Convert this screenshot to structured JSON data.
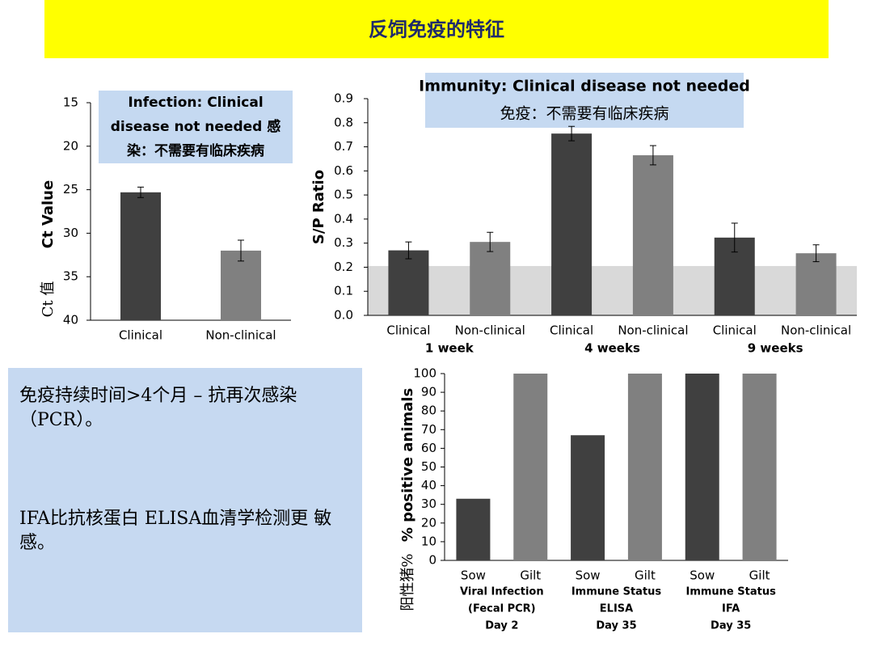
{
  "title": "反饲免疫的特征",
  "text_box": {
    "paragraphs": [
      "免疫持续时间>4个月 – 抗再次感染（PCR）。",
      "IFA比抗核蛋白 ELISA血清学检测更 敏感。"
    ]
  },
  "chart_data": [
    {
      "type": "bar",
      "ylabel": "Ct Value",
      "ylabel_cn": "Ct 值",
      "annotation": [
        "Infection: Clinical",
        "disease not needed 感",
        "染：不需要有临床疾病"
      ],
      "categories": [
        "Clinical",
        "Non-clinical"
      ],
      "values": [
        25.3,
        32
      ],
      "errors": [
        0.6,
        1.2
      ],
      "colors": [
        "#404040",
        "#808080"
      ],
      "ylim": [
        15,
        40
      ],
      "y_inverted": true,
      "yticks": [
        15,
        20,
        25,
        30,
        35,
        40
      ]
    },
    {
      "type": "bar",
      "ylabel": "S/P Ratio",
      "annotation": [
        "Immunity: Clinical disease not needed",
        "免疫：不需要有临床疾病"
      ],
      "categories": [
        "Clinical",
        "Non-clinical",
        "Clinical",
        "Non-clinical",
        "Clinical",
        "Non-clinical"
      ],
      "groups": [
        [
          "1 week"
        ],
        [
          "4 weeks"
        ],
        [
          "9 weeks"
        ]
      ],
      "values": [
        0.27,
        0.305,
        0.755,
        0.665,
        0.323,
        0.258
      ],
      "errors": [
        0.035,
        0.04,
        0.03,
        0.04,
        0.06,
        0.035
      ],
      "colors": [
        "#404040",
        "#808080",
        "#404040",
        "#808080",
        "#404040",
        "#808080"
      ],
      "threshold": 0.205,
      "threshold_color": "#d9d9d9",
      "ylim": [
        0,
        0.9
      ],
      "yticks": [
        {
          "value": 0,
          "label": "0.0"
        },
        0.1,
        0.2,
        0.3,
        0.4,
        0.5,
        0.6,
        0.7,
        0.8,
        0.9
      ]
    },
    {
      "type": "bar",
      "ylabel": "% positive animals",
      "ylabel_cn": "阳性猪%",
      "categories": [
        "Sow",
        "Gilt",
        "Sow",
        "Gilt",
        "Sow",
        "Gilt"
      ],
      "groups": [
        [
          "Viral Infection",
          "(Fecal PCR)",
          "Day 2"
        ],
        [
          "Immune Status",
          "ELISA",
          "Day 35"
        ],
        [
          "Immune Status",
          "IFA",
          "Day 35"
        ]
      ],
      "values": [
        33,
        100,
        67,
        100,
        100,
        100
      ],
      "colors": [
        "#404040",
        "#808080",
        "#404040",
        "#808080",
        "#404040",
        "#808080"
      ],
      "ylim": [
        0,
        100
      ],
      "yticks": [
        0,
        10,
        20,
        30,
        40,
        50,
        60,
        70,
        80,
        90,
        100
      ]
    }
  ]
}
